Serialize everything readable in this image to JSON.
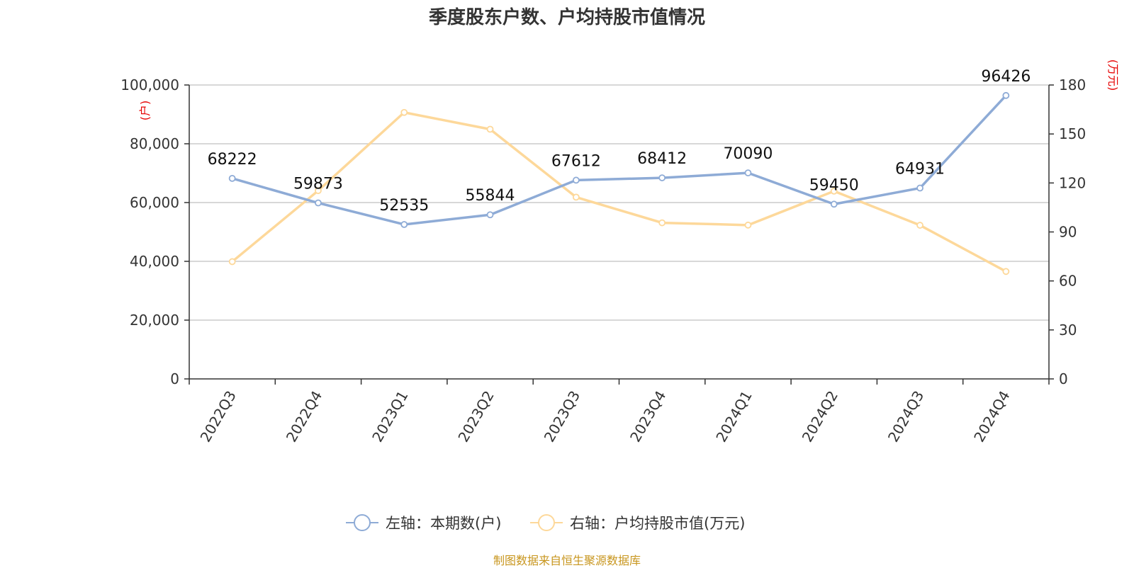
{
  "title": "季度股东户数、户均持股市值情况",
  "source": "制图数据来自恒生聚源数据库",
  "chart_data": {
    "type": "line",
    "title": "季度股东户数、户均持股市值情况",
    "categories": [
      "2022Q3",
      "2022Q4",
      "2023Q1",
      "2023Q2",
      "2023Q3",
      "2023Q4",
      "2024Q1",
      "2024Q2",
      "2024Q3",
      "2024Q4"
    ],
    "left_axis": {
      "unit": "(户)",
      "range": [
        0,
        100000
      ],
      "ticks": [
        0,
        20000,
        40000,
        60000,
        80000,
        100000
      ],
      "tick_labels": [
        "0",
        "20,000",
        "40,000",
        "60,000",
        "80,000",
        "100,000"
      ]
    },
    "right_axis": {
      "unit": "(万元)",
      "range": [
        0,
        180
      ],
      "ticks": [
        0,
        30,
        60,
        90,
        120,
        150,
        180
      ],
      "tick_labels": [
        "0",
        "30",
        "60",
        "90",
        "120",
        "150",
        "180"
      ]
    },
    "grid": true,
    "legend_position": "bottom-center",
    "series": [
      {
        "name": "左轴：本期数(户)",
        "axis": "left",
        "color": "#8eabd6",
        "values": [
          68222,
          59873,
          52535,
          55844,
          67612,
          68412,
          70090,
          59450,
          64931,
          96426
        ],
        "labels": [
          "68222",
          "59873",
          "52535",
          "55844",
          "67612",
          "68412",
          "70090",
          "59450",
          "64931",
          "96426"
        ]
      },
      {
        "name": "右轴：户均持股市值(万元)",
        "axis": "right",
        "color": "#fdd89a",
        "values": [
          71.8,
          115.3,
          163.2,
          152.9,
          111.3,
          95.6,
          94.2,
          115.0,
          94.1,
          65.8
        ]
      }
    ]
  }
}
